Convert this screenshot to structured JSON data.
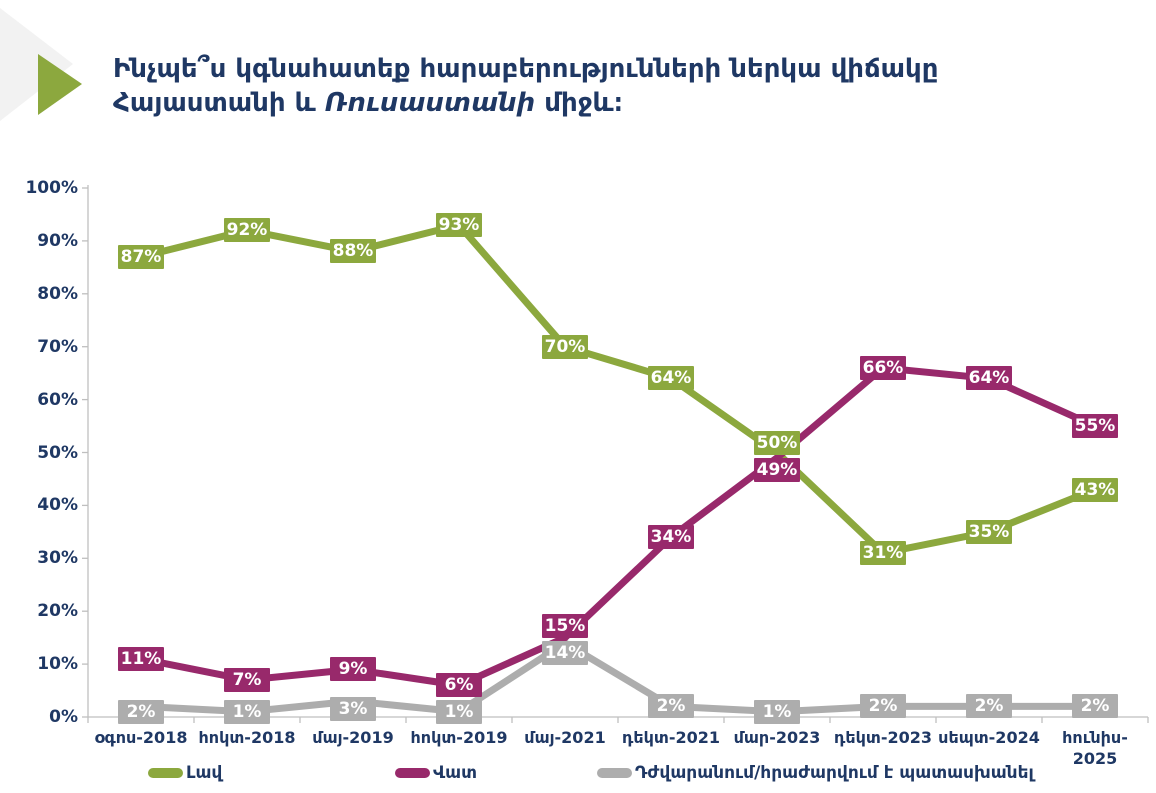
{
  "colors": {
    "text_navy": "#1F3864",
    "axis_gray": "#BFBFBF",
    "decor_back_triangle": "#F2F2F2",
    "decor_arrow_green": "#8CA83E"
  },
  "title": {
    "line1": "Ինչպե՞ս կգնահատեք հարաբերությունների ներկա վիճակը",
    "line2_start": "Հայաստանի և ",
    "line2_italic": "Ռուսաստանի",
    "line2_end": " միջև։"
  },
  "chart_data": {
    "type": "line",
    "title": "Ինչպե՞ս կգնահատեք հարաբերությունների ներկա վիճակը Հայաստանի և Ռուսաստանի միջև։",
    "categories": [
      "օգոս-2018",
      "հոկտ-2018",
      "մայ-2019",
      "հոկտ-2019",
      "մայ-2021",
      "դեկտ-2021",
      "մար-2023",
      "դեկտ-2023",
      "սեպտ-2024",
      "հունիս-\n2025"
    ],
    "series": [
      {
        "slug": "good",
        "name": "Լավ",
        "color": "#8CA83E",
        "values": [
          87,
          92,
          88,
          93,
          70,
          64,
          50,
          31,
          35,
          43
        ]
      },
      {
        "slug": "bad",
        "name": "Վատ",
        "color": "#98296B",
        "values": [
          11,
          7,
          9,
          6,
          15,
          34,
          49,
          66,
          64,
          55
        ]
      },
      {
        "slug": "refuse-difficult",
        "name": "Դժվարանում/հրաժարվում է պատասխանել",
        "color": "#ADADAD",
        "values": [
          2,
          1,
          3,
          1,
          14,
          2,
          1,
          2,
          2,
          2
        ]
      }
    ],
    "ylim": [
      0,
      100
    ],
    "y_tick_labels": [
      "0%",
      "10%",
      "20%",
      "30%",
      "40%",
      "50%",
      "60%",
      "70%",
      "80%",
      "90%",
      "100%"
    ],
    "data_label_format": "{v}%",
    "grid": false,
    "legend_position": "bottom",
    "label_offsets": {
      "good": {
        "6": -10
      },
      "bad": {
        "4": -12,
        "6": 12
      },
      "refuse-difficult": {
        "0": 6,
        "2": 8,
        "4": 10
      }
    }
  }
}
